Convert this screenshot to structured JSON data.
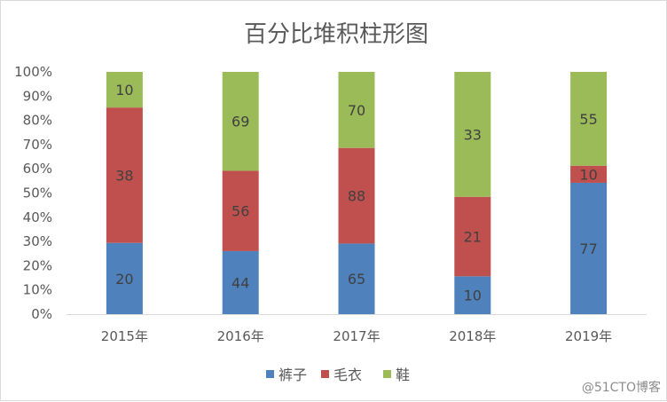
{
  "chart_data": {
    "type": "bar",
    "stacked": "percent",
    "title": "百分比堆积柱形图",
    "categories": [
      "2015年",
      "2016年",
      "2017年",
      "2018年",
      "2019年"
    ],
    "series": [
      {
        "name": "裤子",
        "color": "#4f81bd",
        "values": [
          20,
          44,
          65,
          10,
          77
        ]
      },
      {
        "name": "毛衣",
        "color": "#c0504d",
        "values": [
          38,
          56,
          88,
          21,
          10
        ]
      },
      {
        "name": "鞋",
        "color": "#9bbb59",
        "values": [
          10,
          69,
          70,
          33,
          55
        ]
      }
    ],
    "yticks": [
      "0%",
      "10%",
      "20%",
      "30%",
      "40%",
      "50%",
      "60%",
      "70%",
      "80%",
      "90%",
      "100%"
    ],
    "ylim": [
      0,
      100
    ],
    "grid": false,
    "legend": "bottom"
  },
  "watermark": "@51CTO博客"
}
